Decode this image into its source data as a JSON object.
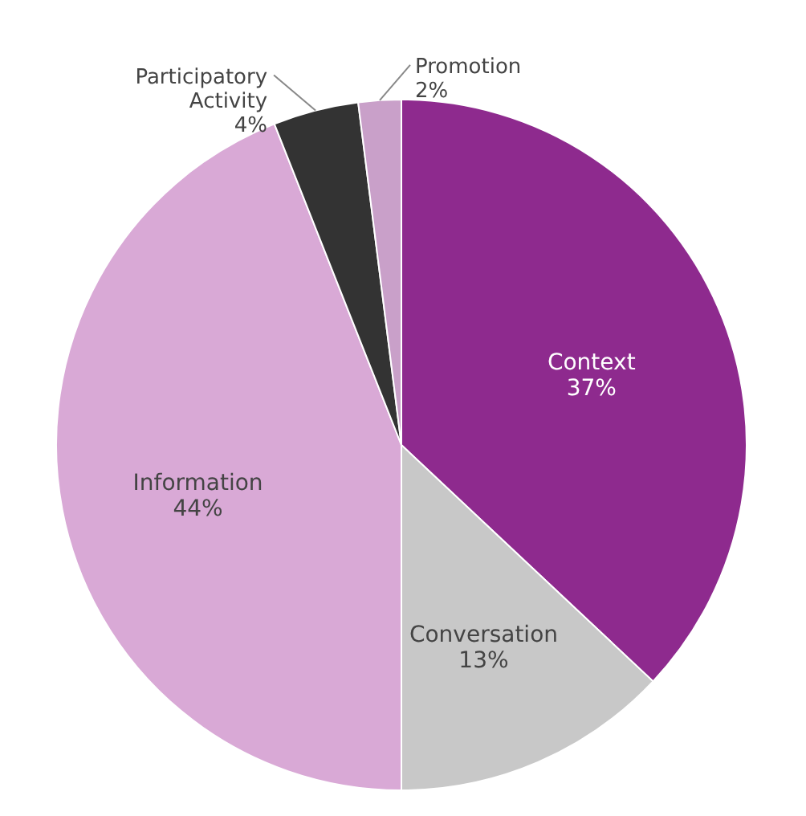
{
  "chart_data": {
    "type": "pie",
    "categories": [
      "Context",
      "Conversation",
      "Information",
      "Participatory Activity",
      "Promotion"
    ],
    "values": [
      37,
      13,
      44,
      4,
      2
    ],
    "colors": [
      "#8e2a8e",
      "#c8c8c8",
      "#d9a9d6",
      "#333333",
      "#c9a0c9"
    ],
    "value_labels": [
      "37%",
      "13%",
      "44%",
      "4%",
      "2%"
    ],
    "legend": false
  }
}
